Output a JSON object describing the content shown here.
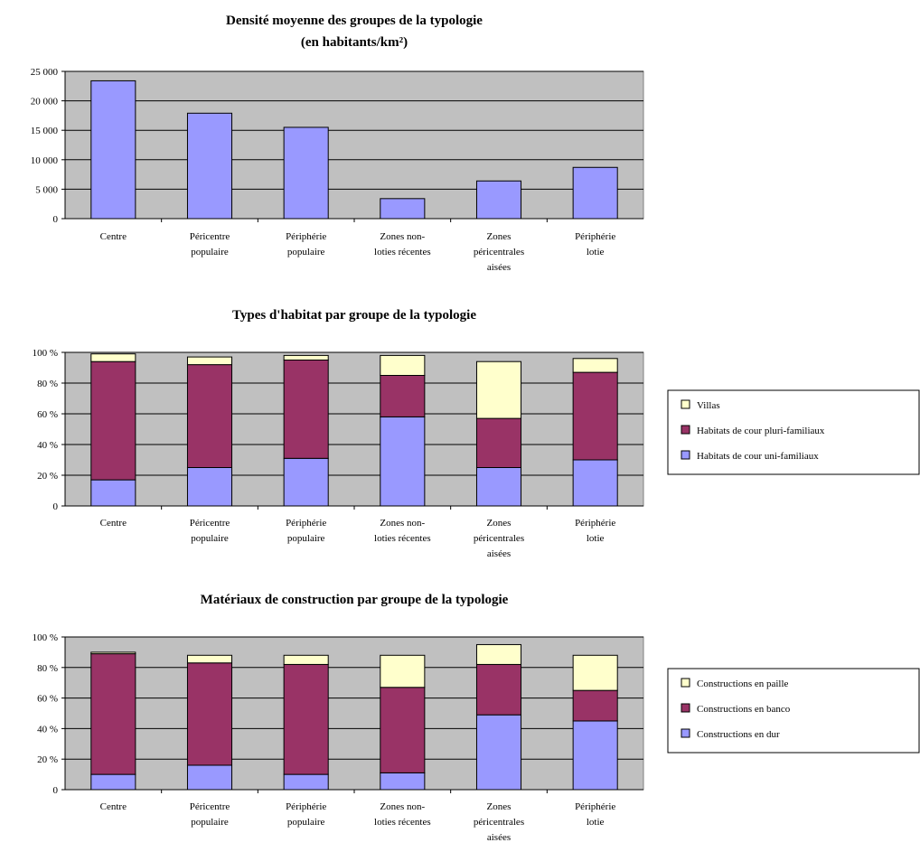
{
  "chart_data": [
    {
      "type": "bar",
      "title": [
        "Densité moyenne des groupes de la typologie",
        "(en habitants/km²)"
      ],
      "categories": [
        [
          "Centre"
        ],
        [
          "Péricentre",
          "populaire"
        ],
        [
          "Périphérie",
          "populaire"
        ],
        [
          "Zones non-",
          "loties récentes"
        ],
        [
          "Zones",
          "péricentrales",
          "aisées"
        ],
        [
          "Périphérie",
          "lotie"
        ]
      ],
      "yticks": [
        "0",
        "5 000",
        "10 000",
        "15 000",
        "20 000",
        "25 000"
      ],
      "ylim": [
        0,
        25000
      ],
      "grid": true,
      "series": [
        {
          "values": [
            23400,
            17900,
            15500,
            3400,
            6400,
            8700
          ],
          "color": "#9999ff"
        }
      ]
    },
    {
      "type": "bar",
      "stacked": true,
      "title": [
        "Types d'habitat par groupe de la typologie"
      ],
      "categories": [
        [
          "Centre"
        ],
        [
          "Péricentre",
          "populaire"
        ],
        [
          "Périphérie",
          "populaire"
        ],
        [
          "Zones non-",
          "loties récentes"
        ],
        [
          "Zones",
          "péricentrales",
          "aisées"
        ],
        [
          "Périphérie",
          "lotie"
        ]
      ],
      "yticks": [
        "0",
        "20 %",
        "40 %",
        "60 %",
        "80 %",
        "100 %"
      ],
      "ylim": [
        0,
        100
      ],
      "grid": true,
      "legend_position": "right",
      "series": [
        {
          "name": "Habitats de cour uni-familiaux",
          "values": [
            17,
            25,
            31,
            58,
            25,
            30
          ],
          "color": "#9999ff"
        },
        {
          "name": "Habitats de cour pluri-familiaux",
          "values": [
            77,
            67,
            64,
            27,
            32,
            57
          ],
          "color": "#993366"
        },
        {
          "name": "Villas",
          "values": [
            5,
            5,
            3,
            13,
            37,
            9
          ],
          "color": "#ffffcc"
        }
      ]
    },
    {
      "type": "bar",
      "stacked": true,
      "title": [
        "Matériaux de construction par groupe de la typologie"
      ],
      "categories": [
        [
          "Centre"
        ],
        [
          "Péricentre",
          "populaire"
        ],
        [
          "Périphérie",
          "populaire"
        ],
        [
          "Zones non-",
          "loties récentes"
        ],
        [
          "Zones",
          "péricentrales",
          "aisées"
        ],
        [
          "Périphérie",
          "lotie"
        ]
      ],
      "yticks": [
        "0",
        "20 %",
        "40 %",
        "60 %",
        "80 %",
        "100 %"
      ],
      "ylim": [
        0,
        100
      ],
      "grid": true,
      "legend_position": "right",
      "series": [
        {
          "name": "Constructions en dur",
          "values": [
            10,
            16,
            10,
            11,
            49,
            45
          ],
          "color": "#9999ff"
        },
        {
          "name": "Constructions en banco",
          "values": [
            79,
            67,
            72,
            56,
            33,
            20
          ],
          "color": "#993366"
        },
        {
          "name": "Constructions en paille",
          "values": [
            1,
            5,
            6,
            21,
            13,
            23
          ],
          "color": "#ffffcc"
        }
      ]
    }
  ]
}
